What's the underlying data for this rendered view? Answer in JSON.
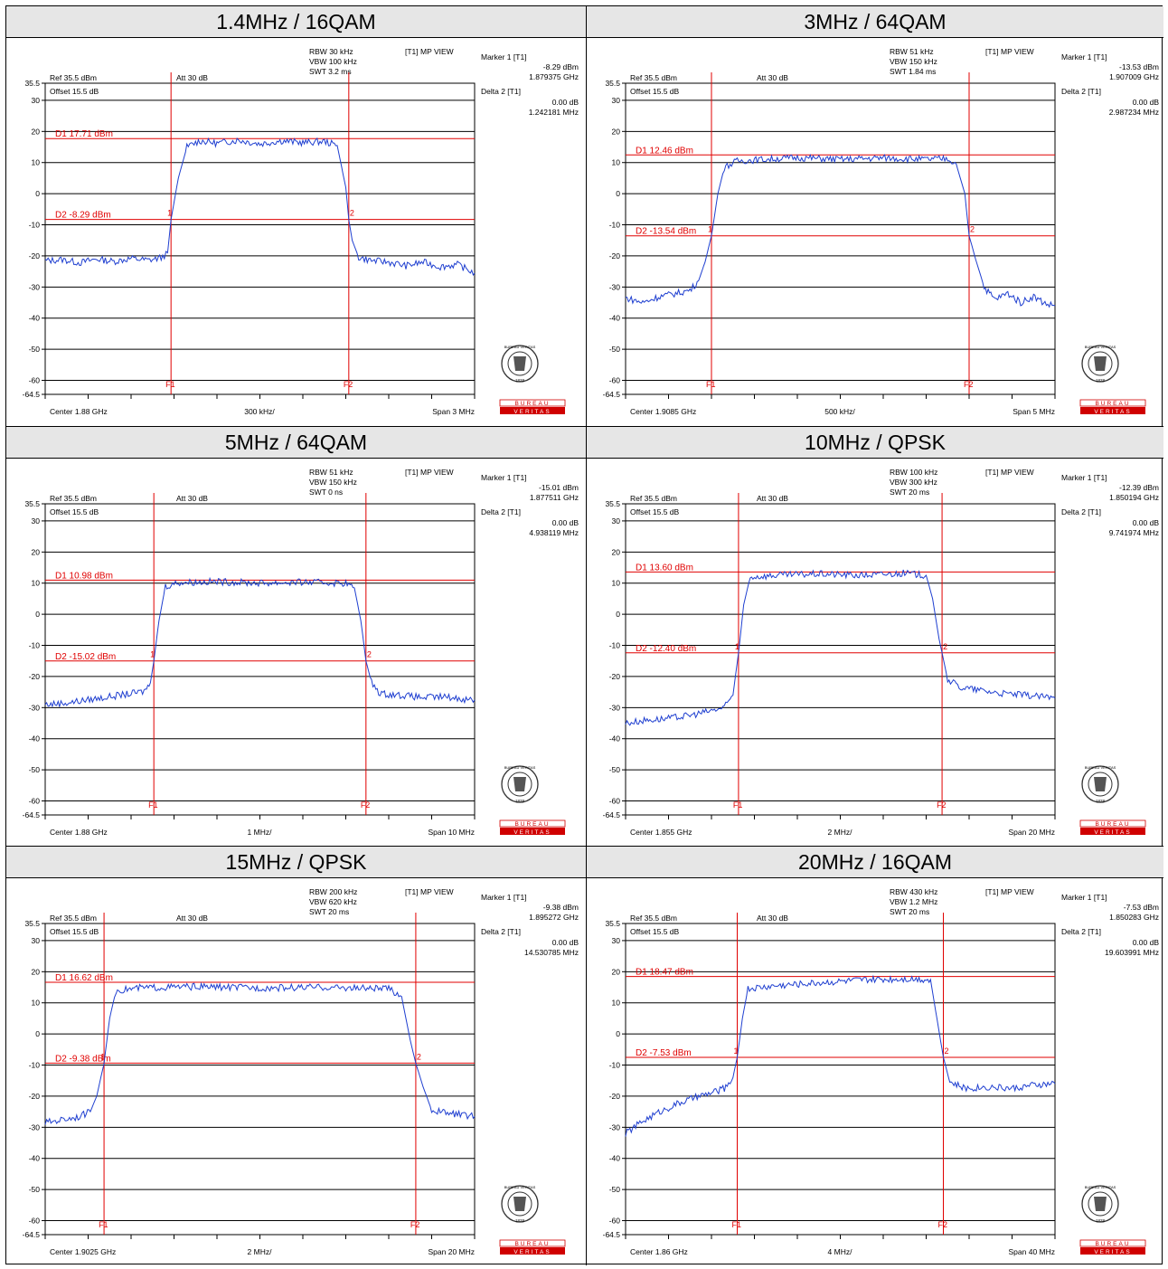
{
  "colors": {
    "trace": "#1f3fd0",
    "marker": "#e00000",
    "grid": "#000000",
    "header_bg": "#e6e6e6",
    "logo": "#d00000"
  },
  "common": {
    "ref": "Ref 35.5 dBm",
    "att": "Att 30 dB",
    "offset": "Offset 15.5 dB",
    "view": "[T1] MP VIEW",
    "marker1": "Marker 1 [T1]",
    "delta2": "Delta 2 [T1]",
    "yticks": [
      "35.5",
      "30",
      "20",
      "10",
      "0",
      "-10",
      "-20",
      "-30",
      "-40",
      "-50",
      "-60",
      "-64.5"
    ],
    "f1": "F1",
    "f2": "F2",
    "m1": "1",
    "m2": "2",
    "logo_top": "BUREAU VERITAS",
    "logo_year": "1828",
    "logo_line1": "BUREAU",
    "logo_line2": "VERITAS"
  },
  "chart_data": [
    {
      "type": "line",
      "title": "1.4MHz / 16QAM",
      "rbw": "RBW 30 kHz",
      "vbw": "VBW 100 kHz",
      "swt": "SWT 3.2 ms",
      "m1_val": "-8.29 dBm",
      "m1_freq": "1.879375 GHz",
      "d2_val": "0.00 dB",
      "d2_freq": "1.242181 MHz",
      "d1_label": "D1 17.71 dBm",
      "d2_label": "D2 -8.29 dBm",
      "center": "Center 1.88 GHz",
      "div": "300 kHz/",
      "span": "Span 3 MHz",
      "ylim": [
        -64.5,
        35.5
      ],
      "xlim": [
        0,
        10
      ],
      "d1": 17.71,
      "d2": -8.29,
      "f1": 2.93,
      "f2": 7.07,
      "series": [
        {
          "values": [
            [
              0,
              -21.6
            ],
            [
              0.4,
              -21.2
            ],
            [
              0.8,
              -22.2
            ],
            [
              1.2,
              -21.0
            ],
            [
              1.6,
              -21.8
            ],
            [
              2.0,
              -20.8
            ],
            [
              2.4,
              -21.4
            ],
            [
              2.7,
              -20.6
            ],
            [
              2.85,
              -19.0
            ],
            [
              2.93,
              -8.3
            ],
            [
              3.1,
              5.0
            ],
            [
              3.3,
              15.0
            ],
            [
              3.6,
              17.0
            ],
            [
              4.0,
              16.2
            ],
            [
              4.5,
              17.2
            ],
            [
              5.0,
              16.0
            ],
            [
              5.5,
              17.0
            ],
            [
              6.0,
              16.4
            ],
            [
              6.5,
              16.8
            ],
            [
              6.8,
              15.5
            ],
            [
              7.0,
              2.0
            ],
            [
              7.07,
              -8.3
            ],
            [
              7.15,
              -15.0
            ],
            [
              7.3,
              -20.5
            ],
            [
              7.6,
              -21.5
            ],
            [
              8.0,
              -22.0
            ],
            [
              8.4,
              -23.2
            ],
            [
              8.8,
              -22.0
            ],
            [
              9.2,
              -23.5
            ],
            [
              9.6,
              -22.8
            ],
            [
              10,
              -25.5
            ]
          ]
        }
      ]
    },
    {
      "type": "line",
      "title": "3MHz / 64QAM",
      "rbw": "RBW 51 kHz",
      "vbw": "VBW 150 kHz",
      "swt": "SWT 1.84 ms",
      "m1_val": "-13.53 dBm",
      "m1_freq": "1.907009 GHz",
      "d2_val": "0.00 dB",
      "d2_freq": "2.987234 MHz",
      "d1_label": "D1 12.46 dBm",
      "d2_label": "D2 -13.54 dBm",
      "center": "Center 1.9085 GHz",
      "div": "500 kHz/",
      "span": "Span 5 MHz",
      "ylim": [
        -64.5,
        35.5
      ],
      "xlim": [
        0,
        10
      ],
      "d1": 12.46,
      "d2": -13.54,
      "f1": 2.0,
      "f2": 8.0,
      "series": [
        {
          "values": [
            [
              0,
              -33.5
            ],
            [
              0.4,
              -35.0
            ],
            [
              0.8,
              -33.0
            ],
            [
              1.2,
              -32.0
            ],
            [
              1.5,
              -31.0
            ],
            [
              1.7,
              -28.0
            ],
            [
              1.85,
              -22.0
            ],
            [
              2.0,
              -13.5
            ],
            [
              2.15,
              0.0
            ],
            [
              2.3,
              8.5
            ],
            [
              2.6,
              10.5
            ],
            [
              3.2,
              11.0
            ],
            [
              4.0,
              11.6
            ],
            [
              5.0,
              11.0
            ],
            [
              6.0,
              11.5
            ],
            [
              7.0,
              11.0
            ],
            [
              7.5,
              11.3
            ],
            [
              7.7,
              9.5
            ],
            [
              7.9,
              0.0
            ],
            [
              8.0,
              -13.5
            ],
            [
              8.15,
              -21.0
            ],
            [
              8.35,
              -30.0
            ],
            [
              8.6,
              -34.0
            ],
            [
              8.9,
              -32.0
            ],
            [
              9.2,
              -35.0
            ],
            [
              9.5,
              -33.0
            ],
            [
              9.8,
              -35.5
            ],
            [
              10,
              -36.0
            ]
          ]
        }
      ]
    },
    {
      "type": "line",
      "title": "5MHz / 64QAM",
      "rbw": "RBW 51 kHz",
      "vbw": "VBW 150 kHz",
      "swt": "SWT 0 ns",
      "m1_val": "-15.01 dBm",
      "m1_freq": "1.877511 GHz",
      "d2_val": "0.00 dB",
      "d2_freq": "4.938119 MHz",
      "d1_label": "D1 10.98 dBm",
      "d2_label": "D2 -15.02 dBm",
      "center": "Center 1.88 GHz",
      "div": "1 MHz/",
      "span": "Span 10 MHz",
      "ylim": [
        -64.5,
        35.5
      ],
      "xlim": [
        0,
        10
      ],
      "d1": 10.98,
      "d2": -15.02,
      "f1": 2.53,
      "f2": 7.47,
      "series": [
        {
          "values": [
            [
              0,
              -29.0
            ],
            [
              0.5,
              -28.5
            ],
            [
              1.0,
              -27.5
            ],
            [
              1.5,
              -26.5
            ],
            [
              2.0,
              -25.5
            ],
            [
              2.3,
              -24.8
            ],
            [
              2.45,
              -22.0
            ],
            [
              2.53,
              -15.0
            ],
            [
              2.65,
              -2.0
            ],
            [
              2.8,
              9.0
            ],
            [
              3.1,
              10.2
            ],
            [
              4.0,
              10.5
            ],
            [
              5.0,
              10.0
            ],
            [
              6.0,
              10.3
            ],
            [
              7.0,
              10.0
            ],
            [
              7.2,
              8.5
            ],
            [
              7.35,
              -2.0
            ],
            [
              7.47,
              -15.0
            ],
            [
              7.6,
              -22.0
            ],
            [
              7.8,
              -25.5
            ],
            [
              8.3,
              -26.0
            ],
            [
              8.8,
              -26.8
            ],
            [
              9.3,
              -26.5
            ],
            [
              9.7,
              -27.2
            ],
            [
              10,
              -27.5
            ]
          ]
        }
      ]
    },
    {
      "type": "line",
      "title": "10MHz / QPSK",
      "rbw": "RBW 100 kHz",
      "vbw": "VBW 300 kHz",
      "swt": "SWT 20 ms",
      "m1_val": "-12.39 dBm",
      "m1_freq": "1.850194 GHz",
      "d2_val": "0.00 dB",
      "d2_freq": "9.741974 MHz",
      "d1_label": "D1 13.60 dBm",
      "d2_label": "D2 -12.40 dBm",
      "center": "Center 1.855 GHz",
      "div": "2 MHz/",
      "span": "Span 20 MHz",
      "ylim": [
        -64.5,
        35.5
      ],
      "xlim": [
        0,
        10
      ],
      "d1": 13.6,
      "d2": -12.4,
      "f1": 2.63,
      "f2": 7.37,
      "series": [
        {
          "values": [
            [
              0,
              -35.0
            ],
            [
              0.5,
              -34.0
            ],
            [
              1.0,
              -33.5
            ],
            [
              1.5,
              -32.5
            ],
            [
              2.0,
              -31.0
            ],
            [
              2.3,
              -30.0
            ],
            [
              2.5,
              -26.0
            ],
            [
              2.63,
              -12.4
            ],
            [
              2.75,
              3.0
            ],
            [
              2.9,
              12.0
            ],
            [
              3.5,
              12.5
            ],
            [
              4.5,
              13.0
            ],
            [
              5.5,
              12.5
            ],
            [
              6.5,
              13.2
            ],
            [
              7.0,
              12.5
            ],
            [
              7.15,
              5.0
            ],
            [
              7.3,
              -8.0
            ],
            [
              7.37,
              -12.4
            ],
            [
              7.5,
              -21.0
            ],
            [
              7.8,
              -23.5
            ],
            [
              8.3,
              -24.5
            ],
            [
              8.8,
              -25.5
            ],
            [
              9.3,
              -26.0
            ],
            [
              9.7,
              -26.5
            ],
            [
              10,
              -27.0
            ]
          ]
        }
      ]
    },
    {
      "type": "line",
      "title": "15MHz / QPSK",
      "rbw": "RBW 200 kHz",
      "vbw": "VBW 620 kHz",
      "swt": "SWT 20 ms",
      "m1_val": "-9.38 dBm",
      "m1_freq": "1.895272 GHz",
      "d2_val": "0.00 dB",
      "d2_freq": "14.530785 MHz",
      "d1_label": "D1 16.62 dBm",
      "d2_label": "D2 -9.38 dBm",
      "center": "Center 1.9025 GHz",
      "div": "2 MHz/",
      "span": "Span 20 MHz",
      "ylim": [
        -64.5,
        35.5
      ],
      "xlim": [
        0,
        10
      ],
      "d1": 16.62,
      "d2": -9.38,
      "f1": 1.37,
      "f2": 8.63,
      "series": [
        {
          "values": [
            [
              0,
              -28.5
            ],
            [
              0.4,
              -27.5
            ],
            [
              0.8,
              -26.5
            ],
            [
              1.05,
              -25.0
            ],
            [
              1.2,
              -20.0
            ],
            [
              1.37,
              -9.4
            ],
            [
              1.5,
              5.0
            ],
            [
              1.65,
              14.0
            ],
            [
              2.2,
              14.8
            ],
            [
              3.5,
              15.2
            ],
            [
              5.0,
              14.8
            ],
            [
              6.5,
              15.0
            ],
            [
              8.0,
              14.5
            ],
            [
              8.3,
              12.0
            ],
            [
              8.5,
              -2.0
            ],
            [
              8.63,
              -9.4
            ],
            [
              8.8,
              -17.0
            ],
            [
              9.0,
              -24.5
            ],
            [
              9.4,
              -25.5
            ],
            [
              9.7,
              -26.0
            ],
            [
              10,
              -26.5
            ]
          ]
        }
      ]
    },
    {
      "type": "line",
      "title": "20MHz / 16QAM",
      "rbw": "RBW 430 kHz",
      "vbw": "VBW 1.2 MHz",
      "swt": "SWT 20 ms",
      "m1_val": "-7.53 dBm",
      "m1_freq": "1.850283 GHz",
      "d2_val": "0.00 dB",
      "d2_freq": "19.603991 MHz",
      "d1_label": "D1 18.47 dBm",
      "d2_label": "D2 -7.53 dBm",
      "center": "Center 1.86 GHz",
      "div": "4 MHz/",
      "span": "Span 40 MHz",
      "ylim": [
        -64.5,
        35.5
      ],
      "xlim": [
        0,
        10
      ],
      "d1": 18.47,
      "d2": -7.53,
      "f1": 2.6,
      "f2": 7.4,
      "series": [
        {
          "values": [
            [
              0,
              -32.0
            ],
            [
              0.4,
              -28.0
            ],
            [
              0.8,
              -25.0
            ],
            [
              1.2,
              -22.5
            ],
            [
              1.6,
              -20.5
            ],
            [
              2.0,
              -19.0
            ],
            [
              2.3,
              -17.5
            ],
            [
              2.5,
              -14.0
            ],
            [
              2.6,
              -7.5
            ],
            [
              2.72,
              5.0
            ],
            [
              2.85,
              14.5
            ],
            [
              3.5,
              15.5
            ],
            [
              4.5,
              16.5
            ],
            [
              5.5,
              17.3
            ],
            [
              6.5,
              17.8
            ],
            [
              7.1,
              17.5
            ],
            [
              7.25,
              5.0
            ],
            [
              7.4,
              -7.5
            ],
            [
              7.55,
              -15.5
            ],
            [
              7.9,
              -17.5
            ],
            [
              8.5,
              -17.0
            ],
            [
              9.0,
              -17.5
            ],
            [
              9.5,
              -16.5
            ],
            [
              10,
              -16.0
            ]
          ]
        }
      ]
    }
  ]
}
